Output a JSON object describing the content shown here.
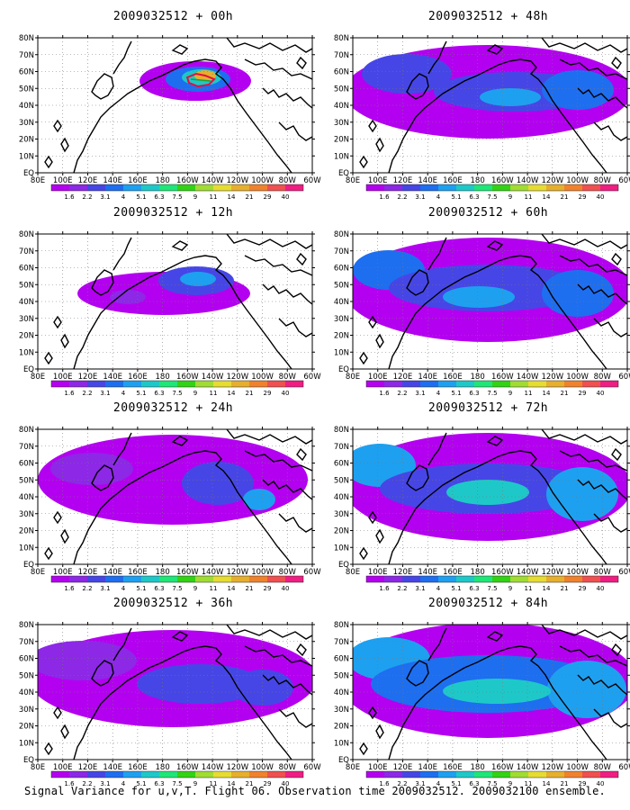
{
  "panels": [
    {
      "title": "2009032512 + 00h"
    },
    {
      "title": "2009032512 + 48h"
    },
    {
      "title": "2009032512 + 12h"
    },
    {
      "title": "2009032512 + 60h"
    },
    {
      "title": "2009032512 + 24h"
    },
    {
      "title": "2009032512 + 72h"
    },
    {
      "title": "2009032512 + 36h"
    },
    {
      "title": "2009032512 + 84h"
    }
  ],
  "lon_labels": [
    "80E",
    "100E",
    "120E",
    "140E",
    "160E",
    "180",
    "160W",
    "140W",
    "120W",
    "100W",
    "80W",
    "60W"
  ],
  "lat_labels": [
    "EQ",
    "10N",
    "20N",
    "30N",
    "40N",
    "50N",
    "60N",
    "70N",
    "80N"
  ],
  "colorbar": {
    "levels": [
      "1.6",
      "2.2",
      "3.1",
      "4",
      "5.1",
      "6.3",
      "7.5",
      "9",
      "11",
      "14",
      "21",
      "29",
      "40"
    ],
    "colors": [
      "#b400f0",
      "#8c28e6",
      "#4646e6",
      "#1e6ef0",
      "#1ea0f0",
      "#1ec8c8",
      "#1ee678",
      "#32d214",
      "#a0dc32",
      "#e6dc32",
      "#e6af2d",
      "#f0822d",
      "#f05050",
      "#f01e82"
    ]
  },
  "footer": "Signal Variance for u,v,T. Flight 06. Observation time 2009032512. 2009032100 ensemble."
}
